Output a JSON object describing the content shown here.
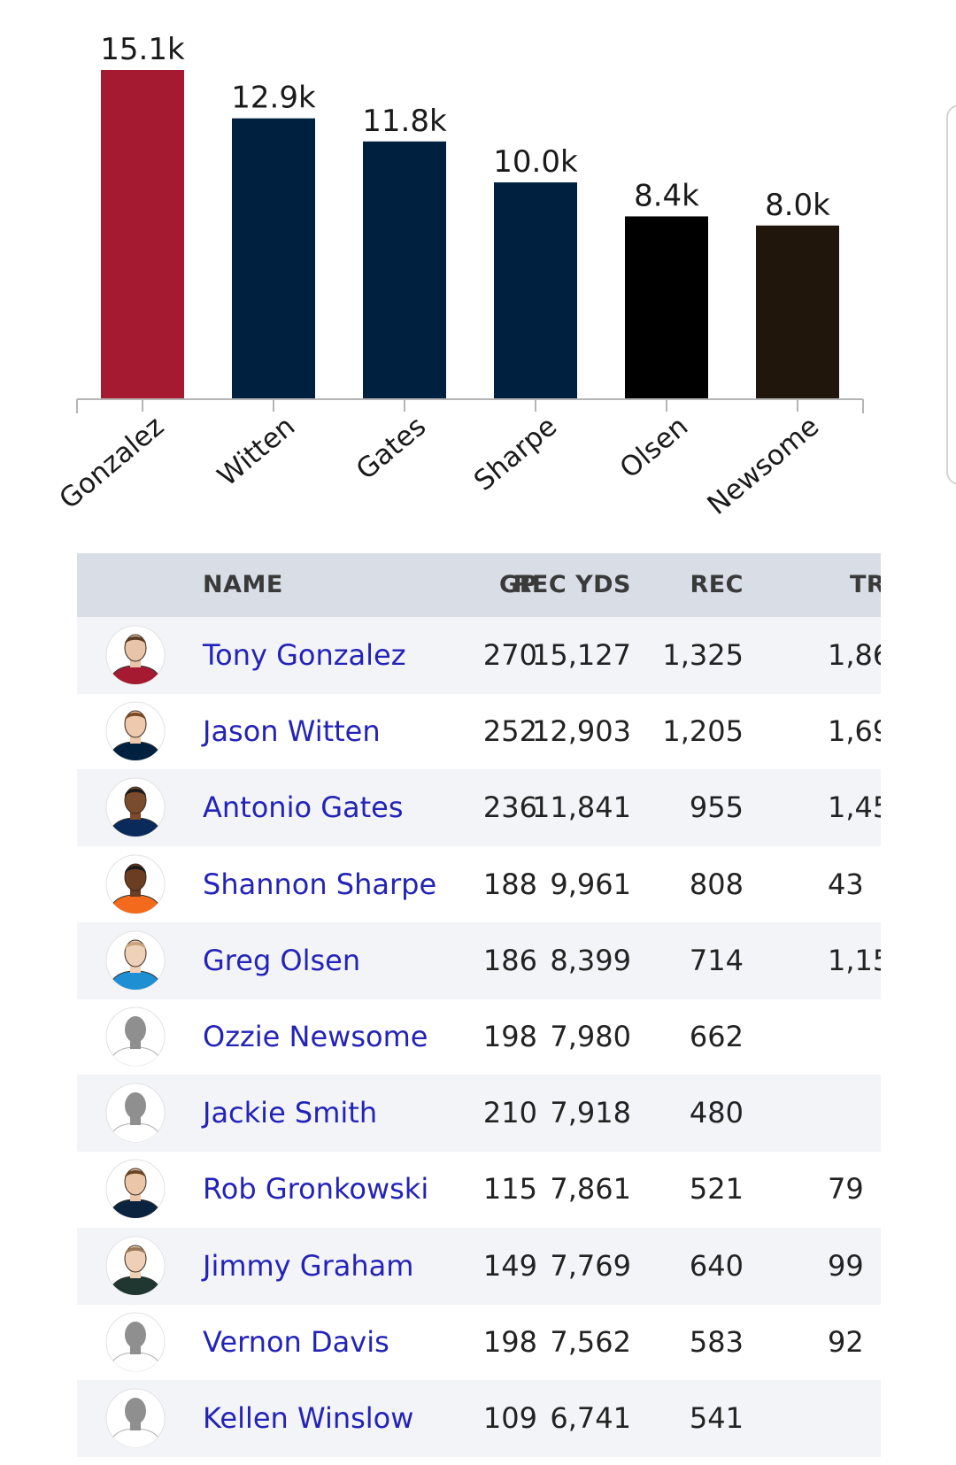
{
  "chart_data": {
    "type": "bar",
    "categories": [
      "Gonzalez",
      "Witten",
      "Gates",
      "Sharpe",
      "Olsen",
      "Newsome"
    ],
    "values": [
      15127,
      12903,
      11841,
      9961,
      8399,
      7980
    ],
    "value_labels": [
      "15.1k",
      "12.9k",
      "11.8k",
      "10.0k",
      "8.4k",
      "8.0k"
    ],
    "colors": [
      "#a51a30",
      "#00203f",
      "#00203f",
      "#00203f",
      "#000000",
      "#21160c"
    ],
    "ylim": [
      0,
      15127
    ],
    "grid": false,
    "xlabel": "",
    "ylabel": ""
  },
  "table": {
    "headers": {
      "name": "NAME",
      "gp": "GP",
      "rec_yds": "REC YDS",
      "rec": "REC",
      "tr": "TR"
    },
    "rows": [
      {
        "name": "Tony Gonzalez",
        "gp": "270",
        "rec_yds": "15,127",
        "rec": "1,325",
        "tr": "1,86",
        "jersey": "#a51a30",
        "skin": "#e8c4a8",
        "hair": "#5a3a22",
        "avatar": "photo"
      },
      {
        "name": "Jason Witten",
        "gp": "252",
        "rec_yds": "12,903",
        "rec": "1,205",
        "tr": "1,69",
        "jersey": "#00203f",
        "skin": "#eec9ad",
        "hair": "#7a4a25",
        "avatar": "photo"
      },
      {
        "name": "Antonio Gates",
        "gp": "236",
        "rec_yds": "11,841",
        "rec": "955",
        "tr": "1,45",
        "jersey": "#0a2a5c",
        "skin": "#7a4b2c",
        "hair": "#1a1a1a",
        "avatar": "photo"
      },
      {
        "name": "Shannon Sharpe",
        "gp": "188",
        "rec_yds": "9,961",
        "rec": "808",
        "tr": "43",
        "jersey": "#f46a1d",
        "skin": "#6b3d22",
        "hair": "#1a1a1a",
        "avatar": "photo"
      },
      {
        "name": "Greg Olsen",
        "gp": "186",
        "rec_yds": "8,399",
        "rec": "714",
        "tr": "1,15",
        "jersey": "#1f8fd3",
        "skin": "#efd0b8",
        "hair": "#c9a27a",
        "avatar": "photo"
      },
      {
        "name": "Ozzie Newsome",
        "gp": "198",
        "rec_yds": "7,980",
        "rec": "662",
        "tr": "",
        "jersey": "#ffffff",
        "skin": "#8f8f8f",
        "hair": "#8f8f8f",
        "avatar": "silhouette"
      },
      {
        "name": "Jackie Smith",
        "gp": "210",
        "rec_yds": "7,918",
        "rec": "480",
        "tr": "",
        "jersey": "#ffffff",
        "skin": "#8f8f8f",
        "hair": "#8f8f8f",
        "avatar": "silhouette"
      },
      {
        "name": "Rob Gronkowski",
        "gp": "115",
        "rec_yds": "7,861",
        "rec": "521",
        "tr": "79",
        "jersey": "#0c2340",
        "skin": "#ecc6a8",
        "hair": "#6a4524",
        "avatar": "photo"
      },
      {
        "name": "Jimmy Graham",
        "gp": "149",
        "rec_yds": "7,769",
        "rec": "640",
        "tr": "99",
        "jersey": "#203731",
        "skin": "#efcfb5",
        "hair": "#9a7a5a",
        "avatar": "photo"
      },
      {
        "name": "Vernon Davis",
        "gp": "198",
        "rec_yds": "7,562",
        "rec": "583",
        "tr": "92",
        "jersey": "#ffffff",
        "skin": "#8f8f8f",
        "hair": "#8f8f8f",
        "avatar": "silhouette"
      },
      {
        "name": "Kellen Winslow",
        "gp": "109",
        "rec_yds": "6,741",
        "rec": "541",
        "tr": "",
        "jersey": "#ffffff",
        "skin": "#8f8f8f",
        "hair": "#8f8f8f",
        "avatar": "silhouette"
      }
    ]
  }
}
